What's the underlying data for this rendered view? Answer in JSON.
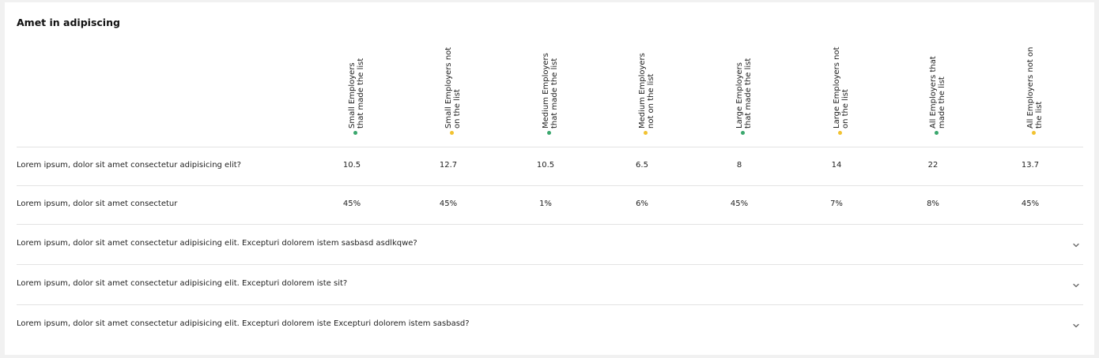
{
  "table": {
    "title": "Amet in adipiscing",
    "colors": {
      "green": "#3aa76d",
      "yellow": "#f2c230"
    },
    "columns": [
      {
        "lines": [
          "Small Employers",
          "that made the list"
        ],
        "dot": "green"
      },
      {
        "lines": [
          "Small Employers not",
          "on the list"
        ],
        "dot": "yellow"
      },
      {
        "lines": [
          "Medium Employers",
          "that made the list"
        ],
        "dot": "green"
      },
      {
        "lines": [
          "Medium Employers",
          "not on the list"
        ],
        "dot": "yellow"
      },
      {
        "lines": [
          "Large Employers",
          "that made the list"
        ],
        "dot": "green"
      },
      {
        "lines": [
          "Large Employers not",
          "on the list"
        ],
        "dot": "yellow"
      },
      {
        "lines": [
          "All Employers that",
          "made the list"
        ],
        "dot": "green"
      },
      {
        "lines": [
          "All Employers not on",
          "the list"
        ],
        "dot": "yellow"
      }
    ],
    "rows": [
      {
        "label": "Lorem ipsum, dolor sit amet consectetur adipisicing elit?",
        "values": [
          "10.5",
          "12.7",
          "10.5",
          "6.5",
          "8",
          "14",
          "22",
          "13.7"
        ]
      },
      {
        "label": "Lorem ipsum, dolor sit amet consectetur",
        "values": [
          "45%",
          "45%",
          "1%",
          "6%",
          "45%",
          "7%",
          "8%",
          "45%"
        ]
      }
    ],
    "accordion": [
      {
        "label": "Lorem ipsum, dolor sit amet consectetur adipisicing elit. Excepturi dolorem istem sasbasd asdlkqwe?",
        "icon": "chevron-down-icon"
      },
      {
        "label": "Lorem ipsum, dolor sit amet consectetur adipisicing elit. Excepturi dolorem iste sit?",
        "icon": "chevron-down-icon"
      },
      {
        "label": "Lorem ipsum, dolor sit amet consectetur adipisicing elit. Excepturi dolorem iste Excepturi dolorem istem sasbasd?",
        "icon": "chevron-down-icon"
      }
    ]
  }
}
